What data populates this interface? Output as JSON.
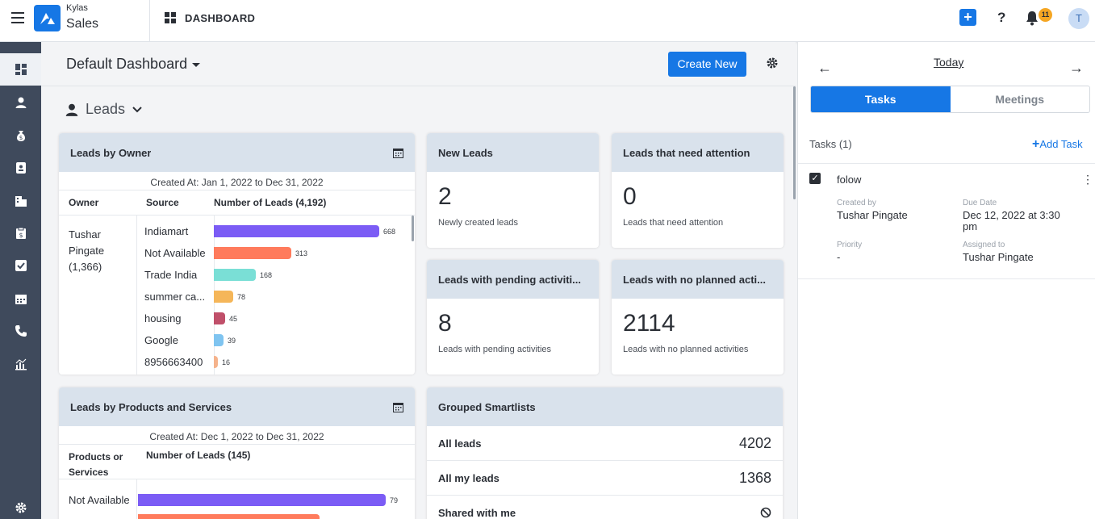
{
  "app": {
    "brand_top": "Kylas",
    "brand_bottom": "Sales",
    "breadcrumb": "DASHBOARD",
    "notification_count": "11",
    "avatar_initial": "T"
  },
  "dashboard": {
    "title": "Default Dashboard",
    "create_label": "Create New",
    "section_title": "Leads"
  },
  "leads_by_owner": {
    "title": "Leads by Owner",
    "range": "Created At: Jan 1, 2022 to Dec 31, 2022",
    "headers": [
      "Owner",
      "Source",
      "Number of Leads (4,192)"
    ],
    "owner": "Tushar Pingate (1,366)",
    "rows": [
      {
        "source": "Indiamart",
        "value": 668,
        "label": "668",
        "color": "#7b5cf5"
      },
      {
        "source": "Not Available",
        "value": 313,
        "label": "313",
        "color": "#ff7b5c"
      },
      {
        "source": "Trade India",
        "value": 168,
        "label": "168",
        "color": "#7adfd6"
      },
      {
        "source": "summer ca...",
        "value": 78,
        "label": "78",
        "color": "#f5b659"
      },
      {
        "source": "housing",
        "value": 45,
        "label": "45",
        "color": "#c0506a"
      },
      {
        "source": "Google",
        "value": 39,
        "label": "39",
        "color": "#7fc4f0"
      },
      {
        "source": "8956663400",
        "value": 16,
        "label": "16",
        "color": "#f5b38c"
      }
    ]
  },
  "kpis": [
    {
      "title": "New Leads",
      "value": "2",
      "subtitle": "Newly created leads"
    },
    {
      "title": "Leads that need attention",
      "value": "0",
      "subtitle": "Leads that need attention"
    },
    {
      "title": "Leads with pending activiti...",
      "value": "8",
      "subtitle": "Leads with pending activities"
    },
    {
      "title": "Leads with no planned acti...",
      "value": "2114",
      "subtitle": "Leads with no planned activities"
    }
  ],
  "leads_by_products": {
    "title": "Leads by Products and Services",
    "range": "Created At: Dec 1, 2022 to Dec 31, 2022",
    "headers": [
      "Products or Services",
      "Number of Leads (145)"
    ],
    "rows": [
      {
        "label": "Not Available",
        "value": 79,
        "value_label": "79",
        "color": "#7b5cf5"
      },
      {
        "label": "",
        "value": 58,
        "value_label": "",
        "color": "#ff7b5c"
      }
    ]
  },
  "smartlists": {
    "title": "Grouped Smartlists",
    "rows": [
      {
        "label": "All leads",
        "count": "4202"
      },
      {
        "label": "All my leads",
        "count": "1368"
      },
      {
        "label": "Shared with me",
        "count": ""
      }
    ]
  },
  "right_panel": {
    "date_label": "Today",
    "tabs": [
      "Tasks",
      "Meetings"
    ],
    "tasks_count": "Tasks (1)",
    "add_task": "Add Task",
    "task": {
      "name": "folow",
      "created_by_label": "Created by",
      "created_by": "Tushar Pingate",
      "due_date_label": "Due Date",
      "due_date": "Dec 12, 2022 at 3:30 pm",
      "priority_label": "Priority",
      "priority": "-",
      "assigned_to_label": "Assigned to",
      "assigned_to": "Tushar Pingate"
    }
  },
  "colors": {
    "accent": "#1677e5",
    "nav_bg": "#3f4a5c",
    "card_header": "#d9e2ec"
  }
}
